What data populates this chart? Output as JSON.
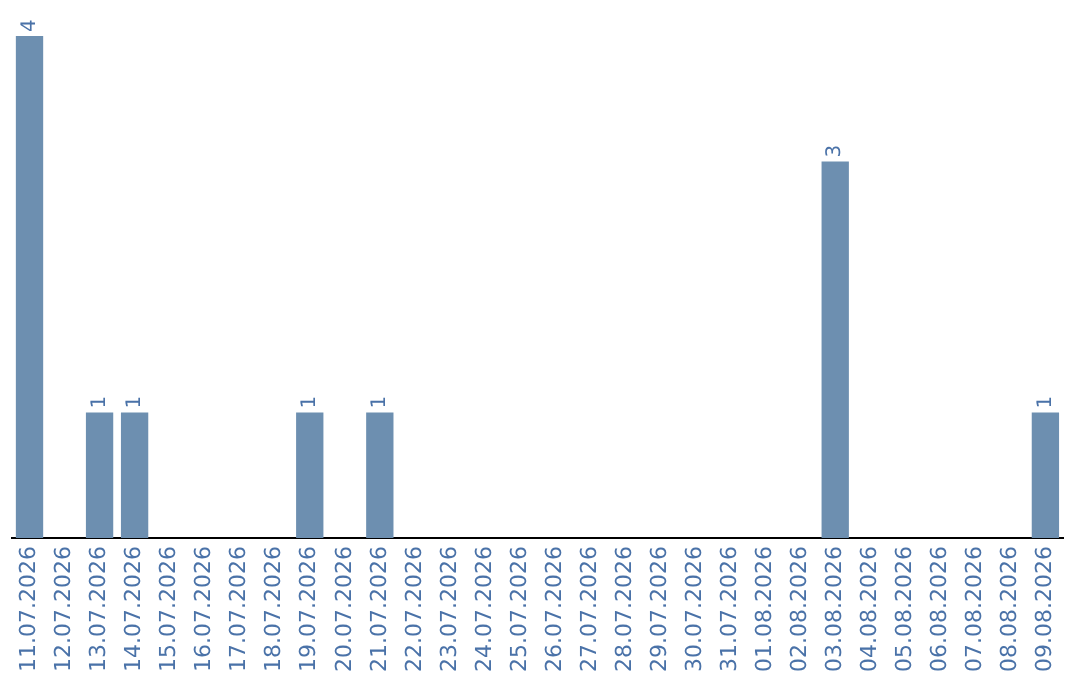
{
  "chart_data": {
    "type": "bar",
    "categories": [
      "11.07.2026",
      "12.07.2026",
      "13.07.2026",
      "14.07.2026",
      "15.07.2026",
      "16.07.2026",
      "17.07.2026",
      "18.07.2026",
      "19.07.2026",
      "20.07.2026",
      "21.07.2026",
      "22.07.2026",
      "23.07.2026",
      "24.07.2026",
      "25.07.2026",
      "26.07.2026",
      "27.07.2026",
      "28.07.2026",
      "29.07.2026",
      "30.07.2026",
      "31.07.2026",
      "01.08.2026",
      "02.08.2026",
      "03.08.2026",
      "04.08.2026",
      "05.08.2026",
      "06.08.2026",
      "07.08.2026",
      "08.08.2026",
      "09.08.2026"
    ],
    "values": [
      4,
      0,
      1,
      1,
      0,
      0,
      0,
      0,
      1,
      0,
      1,
      0,
      0,
      0,
      0,
      0,
      0,
      0,
      0,
      0,
      0,
      0,
      0,
      3,
      0,
      0,
      0,
      0,
      0,
      1
    ],
    "value_labels": [
      "4",
      null,
      "1",
      "1",
      null,
      null,
      null,
      null,
      "1",
      null,
      "1",
      null,
      null,
      null,
      null,
      null,
      null,
      null,
      null,
      null,
      null,
      null,
      null,
      "3",
      null,
      null,
      null,
      null,
      null,
      "1"
    ],
    "color": "#6d8fb0",
    "tick_labels": "x",
    "grid": false,
    "legend": false
  }
}
